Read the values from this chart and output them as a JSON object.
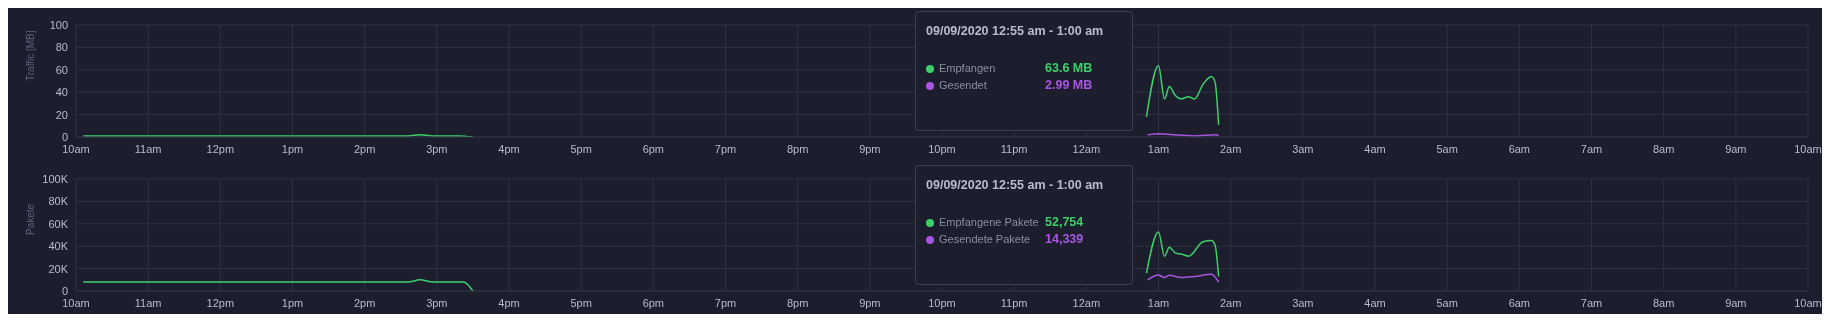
{
  "chart_data": [
    {
      "type": "line",
      "ylabel": "Traffic [MB]",
      "xlim": [
        "2020-09-08T10:00",
        "2020-09-09T10:00"
      ],
      "xticks": [
        {
          "value": "2020-09-08T10:00",
          "label": "10am"
        },
        {
          "value": "2020-09-08T11:00",
          "label": "11am"
        },
        {
          "value": "2020-09-08T12:00",
          "label": "12pm"
        },
        {
          "value": "2020-09-08T13:00",
          "label": "1pm"
        },
        {
          "value": "2020-09-08T14:00",
          "label": "2pm"
        },
        {
          "value": "2020-09-08T15:00",
          "label": "3pm"
        },
        {
          "value": "2020-09-08T16:00",
          "label": "4pm"
        },
        {
          "value": "2020-09-08T17:00",
          "label": "5pm"
        },
        {
          "value": "2020-09-08T18:00",
          "label": "6pm"
        },
        {
          "value": "2020-09-08T19:00",
          "label": "7pm"
        },
        {
          "value": "2020-09-08T20:00",
          "label": "8pm"
        },
        {
          "value": "2020-09-08T21:00",
          "label": "9pm"
        },
        {
          "value": "2020-09-08T22:00",
          "label": "10pm"
        },
        {
          "value": "2020-09-08T23:00",
          "label": "11pm"
        },
        {
          "value": "2020-09-09T00:00",
          "label": "12am"
        },
        {
          "value": "2020-09-09T01:00",
          "label": "1am"
        },
        {
          "value": "2020-09-09T02:00",
          "label": "2am"
        },
        {
          "value": "2020-09-09T03:00",
          "label": "3am"
        },
        {
          "value": "2020-09-09T04:00",
          "label": "4am"
        },
        {
          "value": "2020-09-09T05:00",
          "label": "5am"
        },
        {
          "value": "2020-09-09T06:00",
          "label": "6am"
        },
        {
          "value": "2020-09-09T07:00",
          "label": "7am"
        },
        {
          "value": "2020-09-09T08:00",
          "label": "8am"
        },
        {
          "value": "2020-09-09T09:00",
          "label": "9am"
        },
        {
          "value": "2020-09-09T10:00",
          "label": "10am"
        }
      ],
      "ylim": [
        0,
        100
      ],
      "yticks": [
        0,
        20,
        40,
        60,
        80,
        100
      ],
      "grid": true,
      "legend": "top",
      "annotations": [
        "09/09/2020 12:55 am - 1:00 am",
        "63.6 MB",
        "2.99 MB"
      ],
      "series": [
        {
          "name": "Empfangen",
          "color": "#3ecf6a",
          "x": [
            "2020-09-08T10:06",
            "2020-09-08T10:30",
            "2020-09-08T11:00",
            "2020-09-08T12:00",
            "2020-09-08T13:00",
            "2020-09-08T14:00",
            "2020-09-08T14:36",
            "2020-09-08T14:46",
            "2020-09-08T14:57",
            "2020-09-08T15:18",
            "2020-09-08T15:30",
            "2020-09-08T20:00",
            "2020-09-09T00:50",
            "2020-09-09T01:00",
            "2020-09-09T01:05",
            "2020-09-09T01:09",
            "2020-09-09T01:14",
            "2020-09-09T01:19",
            "2020-09-09T01:25",
            "2020-09-09T01:30",
            "2020-09-09T01:37",
            "2020-09-09T01:44",
            "2020-09-09T01:47",
            "2020-09-09T01:50"
          ],
          "values": [
            1,
            1,
            1,
            1,
            1,
            1,
            1,
            2,
            1,
            1,
            0,
            null,
            18,
            63.6,
            34,
            45,
            37,
            34,
            36,
            34,
            47,
            54,
            49,
            11
          ]
        },
        {
          "name": "Gesendet",
          "color": "#a855e0",
          "x": [
            "2020-09-09T00:51",
            "2020-09-09T01:00",
            "2020-09-09T01:12",
            "2020-09-09T01:30",
            "2020-09-09T01:48",
            "2020-09-09T01:50"
          ],
          "values": [
            2,
            2.99,
            2,
            1,
            2,
            1
          ]
        }
      ]
    },
    {
      "type": "line",
      "ylabel": "Pakete",
      "xlim": [
        "2020-09-08T10:00",
        "2020-09-09T10:00"
      ],
      "xticks": [
        {
          "value": "2020-09-08T10:00",
          "label": "10am"
        },
        {
          "value": "2020-09-08T11:00",
          "label": "11am"
        },
        {
          "value": "2020-09-08T12:00",
          "label": "12pm"
        },
        {
          "value": "2020-09-08T13:00",
          "label": "1pm"
        },
        {
          "value": "2020-09-08T14:00",
          "label": "2pm"
        },
        {
          "value": "2020-09-08T15:00",
          "label": "3pm"
        },
        {
          "value": "2020-09-08T16:00",
          "label": "4pm"
        },
        {
          "value": "2020-09-08T17:00",
          "label": "5pm"
        },
        {
          "value": "2020-09-08T18:00",
          "label": "6pm"
        },
        {
          "value": "2020-09-08T19:00",
          "label": "7pm"
        },
        {
          "value": "2020-09-08T20:00",
          "label": "8pm"
        },
        {
          "value": "2020-09-08T21:00",
          "label": "9pm"
        },
        {
          "value": "2020-09-08T22:00",
          "label": "10pm"
        },
        {
          "value": "2020-09-08T23:00",
          "label": "11pm"
        },
        {
          "value": "2020-09-09T00:00",
          "label": "12am"
        },
        {
          "value": "2020-09-09T01:00",
          "label": "1am"
        },
        {
          "value": "2020-09-09T02:00",
          "label": "2am"
        },
        {
          "value": "2020-09-09T03:00",
          "label": "3am"
        },
        {
          "value": "2020-09-09T04:00",
          "label": "4am"
        },
        {
          "value": "2020-09-09T05:00",
          "label": "5am"
        },
        {
          "value": "2020-09-09T06:00",
          "label": "6am"
        },
        {
          "value": "2020-09-09T07:00",
          "label": "7am"
        },
        {
          "value": "2020-09-09T08:00",
          "label": "8am"
        },
        {
          "value": "2020-09-09T09:00",
          "label": "9am"
        },
        {
          "value": "2020-09-09T10:00",
          "label": "10am"
        }
      ],
      "ylim": [
        0,
        100000
      ],
      "yticks": [
        0,
        {
          "value": 20000,
          "label": "20K"
        },
        {
          "value": 40000,
          "label": "40K"
        },
        {
          "value": 60000,
          "label": "60K"
        },
        {
          "value": 80000,
          "label": "80K"
        },
        {
          "value": 100000,
          "label": "100K"
        }
      ],
      "grid": true,
      "legend": "top",
      "annotations": [
        "09/09/2020 12:55 am - 1:00 am",
        "52,754",
        "14,339"
      ],
      "series": [
        {
          "name": "Empfangene Pakete",
          "color": "#3ecf6a",
          "x": [
            "2020-09-08T10:06",
            "2020-09-08T11:00",
            "2020-09-08T12:00",
            "2020-09-08T13:00",
            "2020-09-08T14:00",
            "2020-09-08T14:36",
            "2020-09-08T14:46",
            "2020-09-08T14:57",
            "2020-09-08T15:22",
            "2020-09-08T15:30",
            "2020-09-08T20:00",
            "2020-09-09T00:50",
            "2020-09-09T01:00",
            "2020-09-09T01:05",
            "2020-09-09T01:09",
            "2020-09-09T01:14",
            "2020-09-09T01:19",
            "2020-09-09T01:25",
            "2020-09-09T01:37",
            "2020-09-09T01:44",
            "2020-09-09T01:47",
            "2020-09-09T01:50"
          ],
          "values": [
            8000,
            8000,
            8000,
            8000,
            8000,
            8000,
            10000,
            8000,
            8000,
            0,
            null,
            16000,
            52754,
            31000,
            39000,
            34000,
            33000,
            31000,
            44000,
            45000,
            41000,
            13000
          ]
        },
        {
          "name": "Gesendete Pakete",
          "color": "#a855e0",
          "x": [
            "2020-09-09T00:51",
            "2020-09-09T01:00",
            "2020-09-09T01:05",
            "2020-09-09T01:09",
            "2020-09-09T01:19",
            "2020-09-09T01:30",
            "2020-09-09T01:44",
            "2020-09-09T01:50"
          ],
          "values": [
            10000,
            14339,
            12000,
            14000,
            12000,
            13000,
            15000,
            8000
          ]
        }
      ]
    }
  ]
}
